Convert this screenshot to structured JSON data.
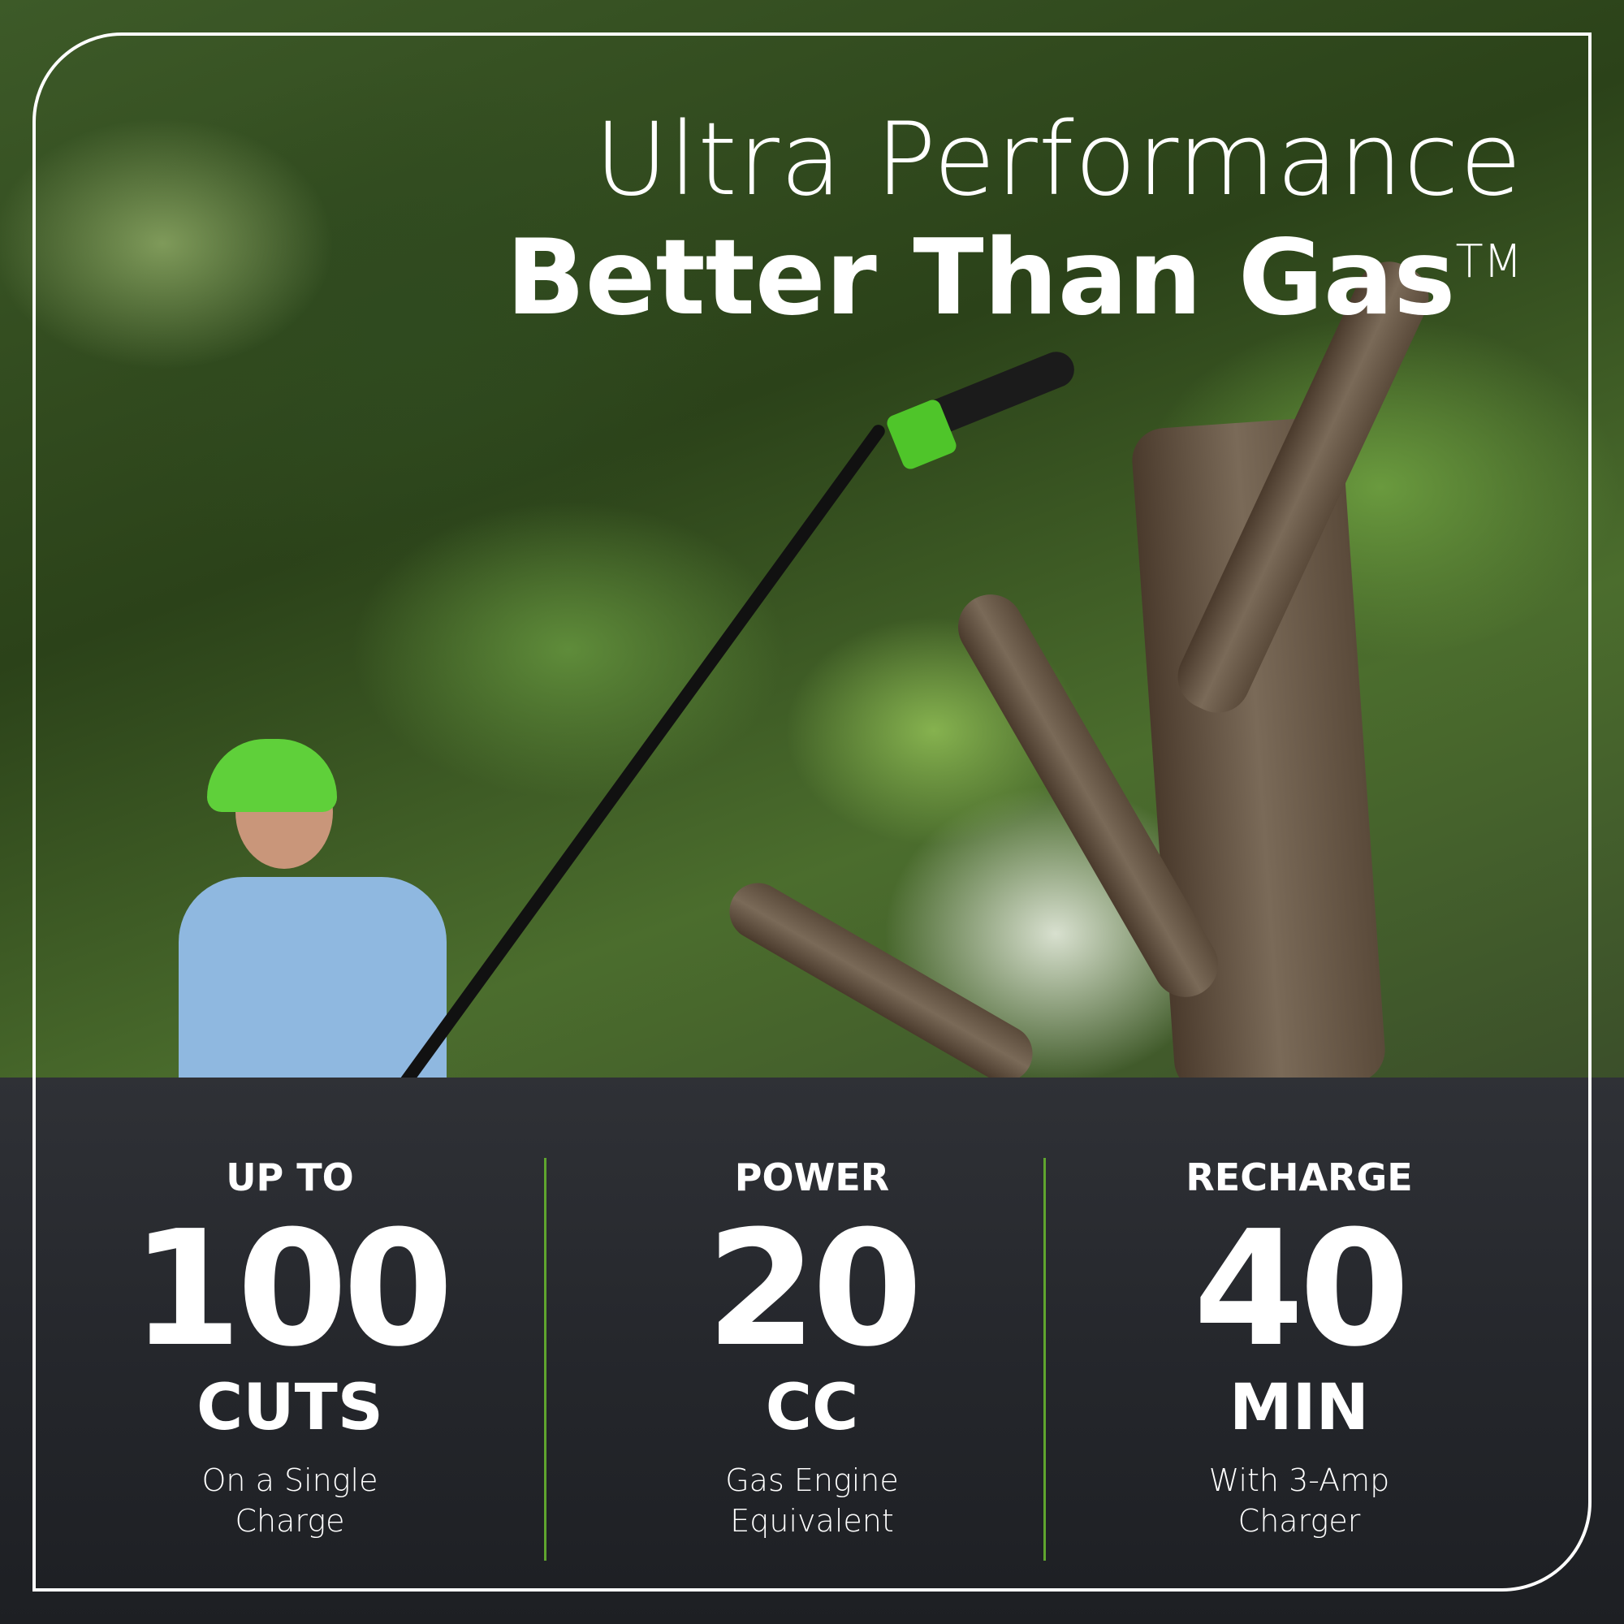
{
  "headline": {
    "line1": "Ultra Performance",
    "line2": "Better Than Gas",
    "trademark": "TM"
  },
  "colors": {
    "panel": "#25272c",
    "divider": "#5fa52e",
    "text": "#ffffff",
    "brand_green": "#4fc52a"
  },
  "stats": [
    {
      "label": "UP TO",
      "value": "100",
      "unit": "CUTS",
      "desc1": "On a Single",
      "desc2": "Charge"
    },
    {
      "label": "POWER",
      "value": "20",
      "unit": "CC",
      "desc1": "Gas Engine",
      "desc2": "Equivalent"
    },
    {
      "label": "RECHARGE",
      "value": "40",
      "unit": "MIN",
      "desc1": "With 3-Amp",
      "desc2": "Charger"
    }
  ]
}
